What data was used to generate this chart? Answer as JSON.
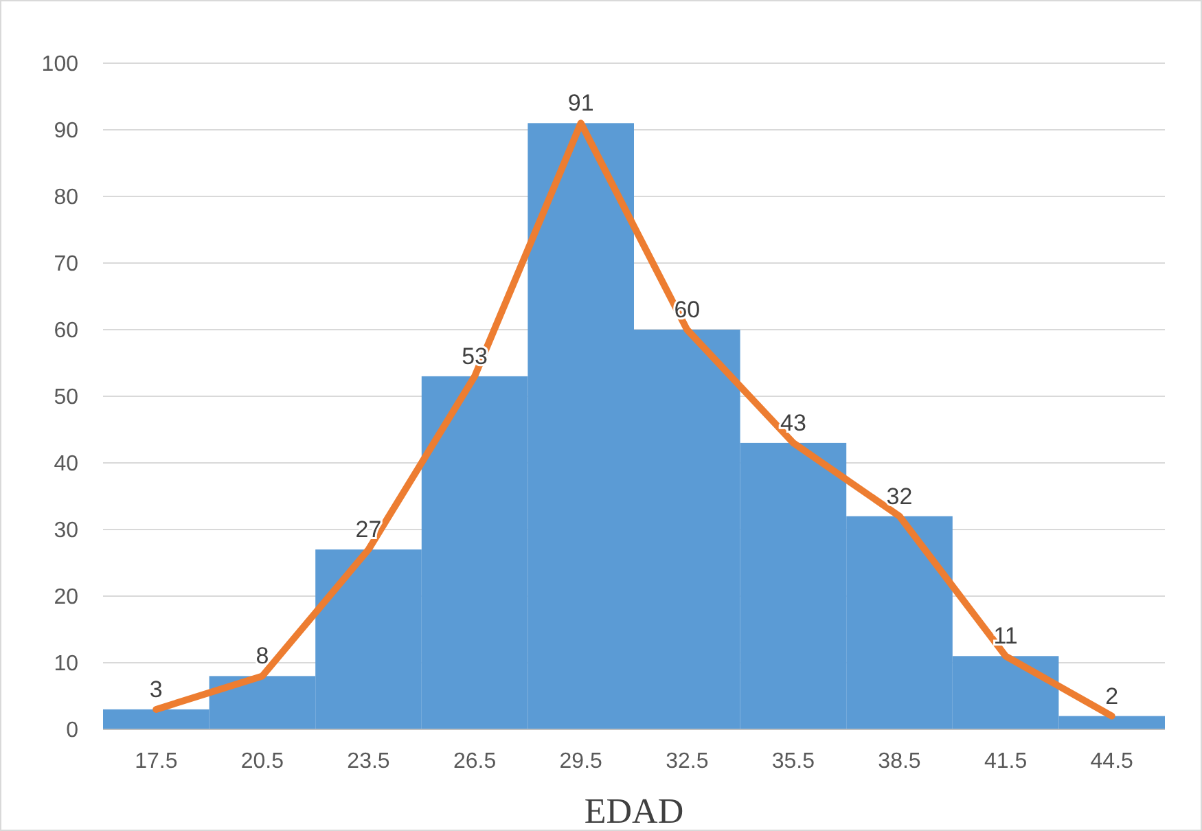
{
  "chart_data": {
    "type": "bar",
    "xlabel": "EDAD",
    "categories": [
      "17.5",
      "20.5",
      "23.5",
      "26.5",
      "29.5",
      "32.5",
      "35.5",
      "38.5",
      "41.5",
      "44.5"
    ],
    "series": [
      {
        "color": "#5b9bd5",
        "values": [
          3,
          8,
          27,
          53,
          91,
          60,
          43,
          32,
          11,
          2
        ]
      },
      {
        "type": "line",
        "color": "#ed7d31",
        "values": [
          3,
          8,
          27,
          53,
          91,
          60,
          43,
          32,
          11,
          2
        ],
        "value_labels": [
          "3",
          "8",
          "27",
          "53",
          "91",
          "60",
          "43",
          "32",
          "11",
          "2"
        ]
      }
    ],
    "ylim": [
      0,
      100
    ],
    "yticks": [
      0,
      10,
      20,
      30,
      40,
      50,
      60,
      70,
      80,
      90,
      100
    ],
    "grid": "y",
    "marker": "none",
    "line_style": "solid"
  }
}
